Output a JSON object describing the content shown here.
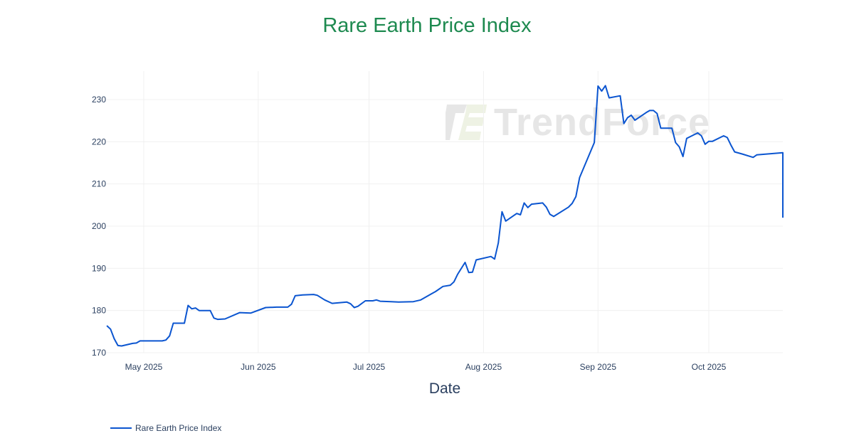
{
  "chart": {
    "title": "Rare Earth Price Index",
    "xlabel": "Date",
    "legend_label": "Rare Earth Price Index",
    "watermark": "TrendForce",
    "line_color": "#0b55d0",
    "title_color": "#1e8a50"
  },
  "chart_data": {
    "type": "line",
    "title": "Rare Earth Price Index",
    "xlabel": "Date",
    "ylabel": "",
    "ylim": [
      168.5,
      237
    ],
    "xlim": [
      "2025-04-21",
      "2025-10-23"
    ],
    "grid": true,
    "legend_position": "bottom-left",
    "x_ticks": [
      "May 2025",
      "Jun 2025",
      "Jul 2025",
      "Aug 2025",
      "Sep 2025",
      "Oct 2025"
    ],
    "y_ticks": [
      170,
      180,
      190,
      200,
      210,
      220,
      230
    ],
    "series": [
      {
        "name": "Rare Earth Price Index",
        "points": [
          [
            "2025-04-21",
            176.4
          ],
          [
            "2025-04-22",
            175.6
          ],
          [
            "2025-04-23",
            173.3
          ],
          [
            "2025-04-24",
            171.7
          ],
          [
            "2025-04-25",
            171.6
          ],
          [
            "2025-04-28",
            172.2
          ],
          [
            "2025-04-29",
            172.3
          ],
          [
            "2025-04-30",
            172.8
          ],
          [
            "2025-05-06",
            172.8
          ],
          [
            "2025-05-07",
            173.0
          ],
          [
            "2025-05-08",
            174.0
          ],
          [
            "2025-05-09",
            177.0
          ],
          [
            "2025-05-12",
            177.0
          ],
          [
            "2025-05-13",
            181.2
          ],
          [
            "2025-05-14",
            180.4
          ],
          [
            "2025-05-15",
            180.6
          ],
          [
            "2025-05-16",
            180.0
          ],
          [
            "2025-05-19",
            180.0
          ],
          [
            "2025-05-20",
            178.2
          ],
          [
            "2025-05-21",
            177.9
          ],
          [
            "2025-05-23",
            178.0
          ],
          [
            "2025-05-27",
            179.5
          ],
          [
            "2025-05-30",
            179.4
          ],
          [
            "2025-06-03",
            180.7
          ],
          [
            "2025-06-06",
            180.8
          ],
          [
            "2025-06-09",
            180.8
          ],
          [
            "2025-06-10",
            181.5
          ],
          [
            "2025-06-11",
            183.5
          ],
          [
            "2025-06-13",
            183.7
          ],
          [
            "2025-06-16",
            183.8
          ],
          [
            "2025-06-17",
            183.6
          ],
          [
            "2025-06-19",
            182.5
          ],
          [
            "2025-06-21",
            181.7
          ],
          [
            "2025-06-25",
            182.0
          ],
          [
            "2025-06-26",
            181.6
          ],
          [
            "2025-06-27",
            180.7
          ],
          [
            "2025-06-28",
            181.0
          ],
          [
            "2025-06-30",
            182.3
          ],
          [
            "2025-07-02",
            182.3
          ],
          [
            "2025-07-03",
            182.5
          ],
          [
            "2025-07-04",
            182.2
          ],
          [
            "2025-07-07",
            182.1
          ],
          [
            "2025-07-09",
            182.0
          ],
          [
            "2025-07-13",
            182.1
          ],
          [
            "2025-07-15",
            182.5
          ],
          [
            "2025-07-18",
            184.0
          ],
          [
            "2025-07-19",
            184.5
          ],
          [
            "2025-07-21",
            185.7
          ],
          [
            "2025-07-23",
            186.0
          ],
          [
            "2025-07-24",
            186.8
          ],
          [
            "2025-07-25",
            188.6
          ],
          [
            "2025-07-27",
            191.4
          ],
          [
            "2025-07-28",
            189.0
          ],
          [
            "2025-07-29",
            189.1
          ],
          [
            "2025-07-30",
            192.0
          ],
          [
            "2025-08-03",
            192.8
          ],
          [
            "2025-08-04",
            192.2
          ],
          [
            "2025-08-05",
            196.0
          ],
          [
            "2025-08-06",
            203.4
          ],
          [
            "2025-08-07",
            201.2
          ],
          [
            "2025-08-10",
            203.0
          ],
          [
            "2025-08-11",
            202.7
          ],
          [
            "2025-08-12",
            205.5
          ],
          [
            "2025-08-13",
            204.4
          ],
          [
            "2025-08-14",
            205.2
          ],
          [
            "2025-08-17",
            205.5
          ],
          [
            "2025-08-18",
            204.5
          ],
          [
            "2025-08-19",
            202.8
          ],
          [
            "2025-08-20",
            202.3
          ],
          [
            "2025-08-24",
            204.5
          ],
          [
            "2025-08-25",
            205.4
          ],
          [
            "2025-08-26",
            207.0
          ],
          [
            "2025-08-27",
            211.5
          ],
          [
            "2025-08-31",
            219.8
          ],
          [
            "2025-09-01",
            233.2
          ],
          [
            "2025-09-02",
            232.0
          ],
          [
            "2025-09-03",
            233.3
          ],
          [
            "2025-09-04",
            230.4
          ],
          [
            "2025-09-07",
            230.9
          ],
          [
            "2025-09-08",
            224.3
          ],
          [
            "2025-09-09",
            225.7
          ],
          [
            "2025-09-10",
            226.3
          ],
          [
            "2025-09-11",
            225.1
          ],
          [
            "2025-09-14",
            226.9
          ],
          [
            "2025-09-15",
            227.4
          ],
          [
            "2025-09-16",
            227.4
          ],
          [
            "2025-09-17",
            226.7
          ],
          [
            "2025-09-18",
            223.2
          ],
          [
            "2025-09-21",
            223.2
          ],
          [
            "2025-09-22",
            219.8
          ],
          [
            "2025-09-23",
            218.8
          ],
          [
            "2025-09-24",
            216.5
          ],
          [
            "2025-09-25",
            220.8
          ],
          [
            "2025-09-28",
            222.1
          ],
          [
            "2025-09-29",
            221.4
          ],
          [
            "2025-09-30",
            219.4
          ],
          [
            "2025-10-01",
            220.1
          ],
          [
            "2025-10-02",
            220.1
          ],
          [
            "2025-10-05",
            221.4
          ],
          [
            "2025-10-06",
            221.0
          ],
          [
            "2025-10-07",
            219.2
          ],
          [
            "2025-10-08",
            217.6
          ],
          [
            "2025-10-10",
            217.1
          ],
          [
            "2025-10-13",
            216.3
          ],
          [
            "2025-10-14",
            216.9
          ],
          [
            "2025-10-22",
            217.4
          ],
          [
            "2025-10-23",
            215.6
          ],
          [
            "2025-10-24",
            210.9
          ],
          [
            "2025-10-27",
            208.3
          ],
          [
            "2025-10-28",
            206.0
          ],
          [
            "2025-10-29",
            205.0
          ],
          [
            "2025-10-30",
            202.6
          ],
          [
            "2025-11-02",
            202.3
          ],
          [
            "2025-11-03",
            202.0
          ]
        ]
      }
    ]
  }
}
